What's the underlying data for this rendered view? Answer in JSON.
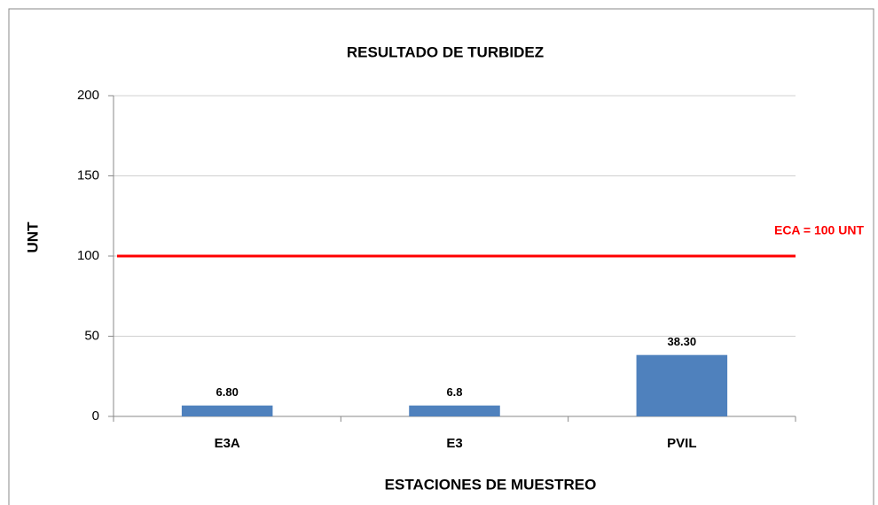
{
  "chart_data": {
    "type": "bar",
    "title": "RESULTADO  DE  TURBIDEZ",
    "x_label": "ESTACIONES  DE  MUESTREO",
    "y_label": "UNT",
    "categories": [
      "E3A",
      "E3",
      "PVIL"
    ],
    "values": [
      6.8,
      6.8,
      38.3
    ],
    "value_labels": [
      "6.80",
      "6.8",
      "38.30"
    ],
    "color": "#4f81bd",
    "ylim": [
      0,
      200
    ],
    "yticks": [
      0,
      50,
      100,
      150,
      200
    ],
    "grid": true,
    "reference_line": {
      "value": 100,
      "label": "ECA = 100 UNT",
      "color": "#ff0000"
    }
  }
}
